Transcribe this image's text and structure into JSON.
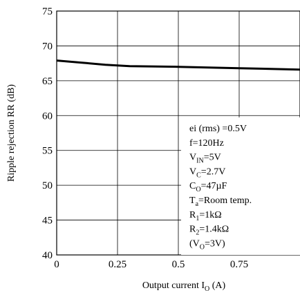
{
  "chart_data": {
    "type": "line",
    "title": "",
    "xlabel": {
      "main": "Output current I",
      "sub": "O",
      "suffix": " (A)"
    },
    "ylabel": "Ripple rejection RR (dB)",
    "xlim": [
      0,
      1.0
    ],
    "ylim": [
      40,
      75
    ],
    "x_ticks": [
      0,
      0.25,
      0.5,
      0.75
    ],
    "x_tick_labels": [
      "0",
      "0.25",
      "0.5",
      "0.75"
    ],
    "y_ticks": [
      40,
      45,
      50,
      55,
      60,
      65,
      70,
      75
    ],
    "y_tick_labels": [
      "40",
      "45",
      "50",
      "55",
      "60",
      "65",
      "70",
      "75"
    ],
    "grid": true,
    "series": [
      {
        "x": [
          0,
          0.1,
          0.2,
          0.3,
          0.5,
          0.75,
          1.0
        ],
        "y": [
          67.9,
          67.6,
          67.3,
          67.1,
          67.0,
          66.8,
          66.6
        ]
      }
    ],
    "conditions": [
      {
        "main": "ei (rms) =0.5V",
        "sub": "",
        "rest": ""
      },
      {
        "main": "f=120Hz",
        "sub": "",
        "rest": ""
      },
      {
        "main": "V",
        "sub": "IN",
        "rest": "=5V"
      },
      {
        "main": "V",
        "sub": "C",
        "rest": "=2.7V"
      },
      {
        "main": "C",
        "sub": "O",
        "rest": "=47µF"
      },
      {
        "main": "T",
        "sub": "a",
        "rest": "=Room temp."
      },
      {
        "main": "R",
        "sub": "1",
        "rest": "=1kΩ"
      },
      {
        "main": "R",
        "sub": "2",
        "rest": "=1.4kΩ"
      },
      {
        "main": "(V",
        "sub": "O",
        "rest": "=3V)"
      }
    ]
  }
}
